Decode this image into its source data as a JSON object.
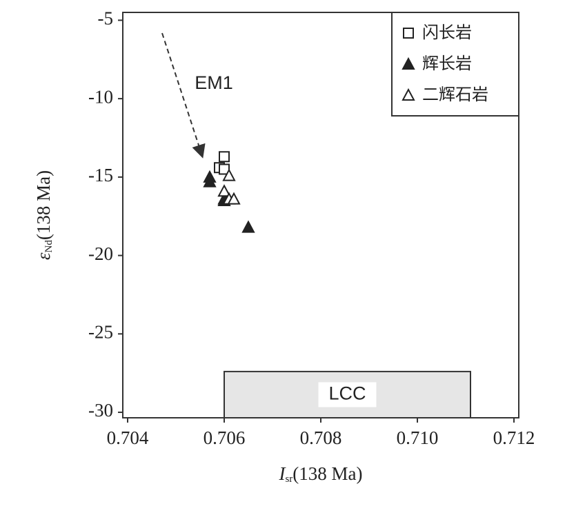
{
  "chart_data": {
    "type": "scatter",
    "x_label": {
      "symbol": "I",
      "sub": "sr",
      "text": "(138 Ma)"
    },
    "y_label": {
      "symbol": "ε",
      "sub": "Nd",
      "text": "(138 Ma)"
    },
    "xlim": [
      0.7039,
      0.7121
    ],
    "ylim": [
      -30.35,
      -4.5
    ],
    "xticks": [
      0.704,
      0.706,
      0.708,
      {
        "value": 0.71,
        "label": "0.710"
      },
      0.712
    ],
    "yticks": [
      -5,
      -10,
      -15,
      -20,
      -25,
      -30
    ],
    "legend": "top-right",
    "series": [
      {
        "name": "闪长岩",
        "marker": "square",
        "color": "#222",
        "x": [
          0.706,
          0.7059,
          0.706
        ],
        "values": [
          -13.7,
          -14.4,
          -14.5
        ]
      },
      {
        "name": "辉长岩",
        "marker": "triangle-filled",
        "color": "#222",
        "x": [
          0.7057,
          0.7057,
          0.706,
          0.706,
          0.7065
        ],
        "values": [
          -15.0,
          -15.3,
          -16.4,
          -16.5,
          -18.2
        ]
      },
      {
        "name": "二辉石岩",
        "marker": "triangle-open",
        "color": "#222",
        "x": [
          0.7061,
          0.706,
          0.7061,
          0.7062
        ],
        "values": [
          -14.9,
          -15.9,
          -16.4,
          -16.4
        ]
      }
    ],
    "annotations": [
      {
        "text": "EM1"
      }
    ],
    "region": {
      "label": "LCC",
      "x": [
        0.706,
        0.7111
      ],
      "y": [
        -27.4,
        -30.35
      ],
      "color": "#e6e6e6"
    }
  }
}
